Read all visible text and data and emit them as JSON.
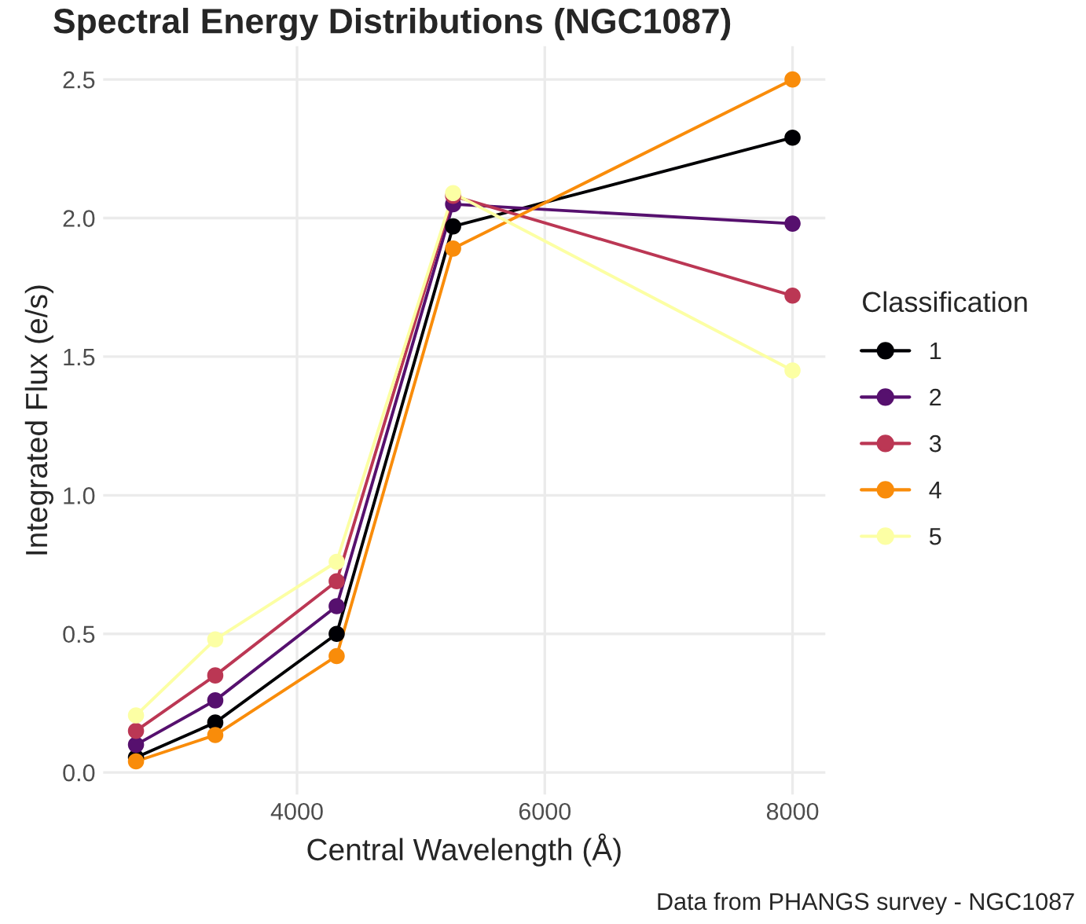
{
  "chart_data": {
    "type": "line",
    "title": "Spectral Energy Distributions (NGC1087)",
    "xlabel": "Central Wavelength (Å)",
    "ylabel": "Integrated Flux (e/s)",
    "legend_title": "Classification",
    "x": [
      2700,
      3340,
      4320,
      5260,
      8000
    ],
    "series": [
      {
        "name": "1",
        "color": "#000004",
        "values": [
          0.054,
          0.18,
          0.5,
          1.97,
          2.29
        ]
      },
      {
        "name": "2",
        "color": "#56106e",
        "values": [
          0.1,
          0.26,
          0.6,
          2.05,
          1.98
        ]
      },
      {
        "name": "3",
        "color": "#bb3754",
        "values": [
          0.15,
          0.35,
          0.69,
          2.08,
          1.72
        ]
      },
      {
        "name": "4",
        "color": "#f98c0a",
        "values": [
          0.04,
          0.135,
          0.42,
          1.89,
          2.5
        ]
      },
      {
        "name": "5",
        "color": "#fcffa4",
        "values": [
          0.206,
          0.48,
          0.76,
          2.09,
          1.45
        ]
      }
    ],
    "xlim": [
      2435,
      8265
    ],
    "ylim": [
      -0.08,
      2.62
    ],
    "xticks": [
      4000,
      6000,
      8000
    ],
    "yticks": [
      {
        "value": 0,
        "label": "0.0"
      },
      {
        "value": 0.5,
        "label": "0.5"
      },
      {
        "value": 1,
        "label": "1.0"
      },
      {
        "value": 1.5,
        "label": "1.5"
      },
      {
        "value": 2,
        "label": "2.0"
      },
      {
        "value": 2.5,
        "label": "2.5"
      }
    ],
    "grid": true,
    "legend": "right",
    "marker": "circle",
    "line_style": "solid",
    "annotations": [
      "Data from PHANGS survey - NGC1087"
    ]
  }
}
